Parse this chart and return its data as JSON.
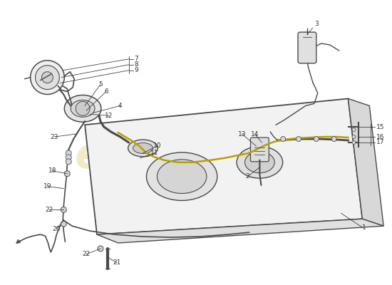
{
  "bg_color": "#ffffff",
  "line_color": "#4a4a4a",
  "tank_fill": "#f0f0f0",
  "tank_stroke": "#4a4a4a",
  "label_color": "#333333",
  "pipe_color": "#4a4a4a",
  "yellow_color": "#b8a000",
  "wm_color": "#c8a800",
  "wm_alpha": 0.22
}
